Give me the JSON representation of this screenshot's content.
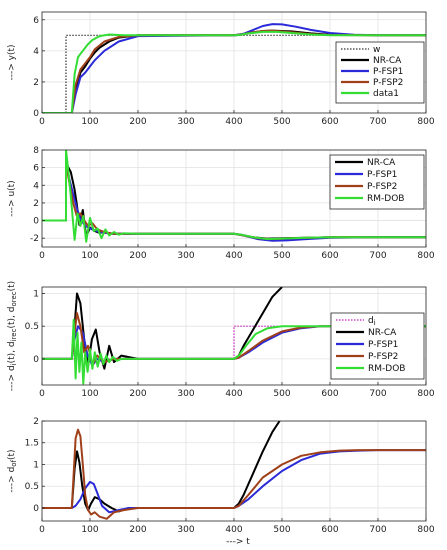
{
  "colors": {
    "w": "#333333",
    "di": "#c020c0",
    "NR-CA": "#000000",
    "P-FSP1": "#2a2ad8",
    "P-FSP2": "#a0401a",
    "green": "#33dd33"
  },
  "xlabel": "---> t",
  "chart_data": [
    {
      "type": "line",
      "ylabel": "---> y(t)",
      "xlim": [
        0,
        800
      ],
      "ylim": [
        0,
        6.5
      ],
      "xticks": [
        0,
        100,
        200,
        300,
        400,
        500,
        600,
        700,
        800
      ],
      "yticks": [
        0,
        2,
        4,
        6
      ],
      "grid": true,
      "legend": "top-right",
      "series": [
        {
          "name": "w",
          "color_key": "w",
          "style": "dotted",
          "x": [
            0,
            50,
            50,
            800
          ],
          "y": [
            0,
            0,
            5,
            5
          ]
        },
        {
          "name": "NR-CA",
          "color_key": "NR-CA",
          "x": [
            0,
            62,
            70,
            80,
            90,
            100,
            110,
            120,
            140,
            160,
            200,
            400,
            410,
            430,
            460,
            480,
            520,
            560,
            600,
            700,
            800
          ],
          "y": [
            0,
            0,
            1.5,
            2.6,
            3.0,
            3.5,
            3.9,
            4.2,
            4.6,
            4.85,
            5,
            5,
            5.02,
            5.15,
            5.28,
            5.3,
            5.25,
            5.12,
            5.04,
            5,
            5
          ]
        },
        {
          "name": "P-FSP1",
          "color_key": "P-FSP1",
          "x": [
            0,
            62,
            70,
            80,
            90,
            100,
            110,
            130,
            160,
            200,
            400,
            420,
            440,
            460,
            480,
            500,
            530,
            560,
            600,
            650,
            700,
            800
          ],
          "y": [
            0,
            0,
            1.2,
            2.3,
            2.6,
            3.0,
            3.4,
            4.0,
            4.6,
            4.95,
            5,
            5.1,
            5.35,
            5.6,
            5.72,
            5.7,
            5.55,
            5.35,
            5.15,
            5.04,
            5,
            5
          ]
        },
        {
          "name": "P-FSP2",
          "color_key": "P-FSP2",
          "x": [
            0,
            62,
            70,
            80,
            90,
            100,
            110,
            130,
            160,
            200,
            400,
            420,
            440,
            460,
            480,
            520,
            560,
            600,
            700,
            800
          ],
          "y": [
            0,
            0,
            1.8,
            2.8,
            3.2,
            3.6,
            4.1,
            4.6,
            4.9,
            5,
            5,
            5.08,
            5.2,
            5.28,
            5.3,
            5.2,
            5.08,
            5.02,
            5,
            5
          ]
        },
        {
          "name": "data1",
          "color_key": "green",
          "x": [
            0,
            62,
            68,
            75,
            85,
            95,
            105,
            120,
            140,
            170,
            200,
            400,
            410,
            430,
            460,
            490,
            520,
            560,
            600,
            700,
            800
          ],
          "y": [
            0,
            0,
            2.5,
            3.6,
            4.0,
            4.4,
            4.7,
            4.95,
            5.05,
            5,
            5,
            5,
            5.02,
            5.12,
            5.22,
            5.22,
            5.15,
            5.05,
            5.01,
            5,
            5
          ]
        }
      ]
    },
    {
      "type": "line",
      "ylabel": "---> u(t)",
      "xlim": [
        0,
        800
      ],
      "ylim": [
        -3,
        8
      ],
      "xticks": [
        0,
        100,
        200,
        300,
        400,
        500,
        600,
        700,
        800
      ],
      "yticks": [
        -2,
        0,
        2,
        4,
        6,
        8
      ],
      "grid": true,
      "legend": "top-right",
      "series": [
        {
          "name": "NR-CA",
          "color_key": "NR-CA",
          "x": [
            0,
            50,
            50,
            60,
            68,
            72,
            78,
            85,
            92,
            100,
            110,
            120,
            130,
            140,
            160,
            200,
            400,
            415,
            440,
            470,
            500,
            550,
            600,
            700,
            800
          ],
          "y": [
            0,
            0,
            6.5,
            5.5,
            3.5,
            2.0,
            -0.5,
            1.2,
            -1.8,
            -0.8,
            -1.2,
            -1.4,
            -1.3,
            -1.5,
            -1.5,
            -1.5,
            -1.5,
            -1.6,
            -1.9,
            -2.05,
            -2.0,
            -1.95,
            -1.9,
            -1.9,
            -1.9
          ]
        },
        {
          "name": "P-FSP1",
          "color_key": "P-FSP1",
          "x": [
            0,
            50,
            50,
            58,
            65,
            72,
            80,
            90,
            100,
            115,
            130,
            150,
            200,
            400,
            420,
            450,
            480,
            510,
            550,
            600,
            700,
            800
          ],
          "y": [
            0,
            0,
            6.5,
            4.5,
            3.0,
            1.5,
            0.2,
            -0.6,
            -0.9,
            -1.2,
            -1.4,
            -1.5,
            -1.5,
            -1.5,
            -1.7,
            -2.1,
            -2.3,
            -2.25,
            -2.1,
            -1.95,
            -1.9,
            -1.9
          ]
        },
        {
          "name": "P-FSP2",
          "color_key": "P-FSP2",
          "x": [
            0,
            50,
            50,
            58,
            65,
            72,
            80,
            88,
            96,
            105,
            115,
            130,
            150,
            200,
            400,
            420,
            450,
            480,
            520,
            560,
            600,
            700,
            800
          ],
          "y": [
            0,
            0,
            6.5,
            4.0,
            2.0,
            0.6,
            0.8,
            0.0,
            -0.6,
            -0.3,
            -1.0,
            -1.3,
            -1.5,
            -1.5,
            -1.5,
            -1.7,
            -2.0,
            -2.1,
            -2.0,
            -1.95,
            -1.9,
            -1.9,
            -1.9
          ]
        },
        {
          "name": "RM-DOB",
          "color_key": "green",
          "x": [
            0,
            50,
            50,
            56,
            62,
            68,
            74,
            80,
            86,
            92,
            100,
            108,
            116,
            124,
            132,
            140,
            150,
            160,
            170,
            200,
            400,
            415,
            440,
            470,
            500,
            550,
            600,
            700,
            800
          ],
          "y": [
            0,
            0,
            8.0,
            5.0,
            1.5,
            -2.2,
            0.8,
            -0.6,
            0.5,
            -2.4,
            0.3,
            -1.2,
            -0.9,
            -2.0,
            -1.0,
            -1.7,
            -1.3,
            -1.6,
            -1.45,
            -1.5,
            -1.5,
            -1.6,
            -1.9,
            -2.1,
            -2.05,
            -1.95,
            -1.9,
            -1.9,
            -1.9
          ]
        }
      ]
    },
    {
      "type": "line",
      "ylabel": "---> d",
      "ylabel_rest": "(t), d",
      "ylabel_sub1": "i",
      "ylabel_sub2": "irec",
      "ylabel_sub3": "orec",
      "ylabel_mid": "(t), d",
      "ylabel_end": "(t)",
      "xlim": [
        0,
        800
      ],
      "ylim": [
        -0.4,
        1.1
      ],
      "xticks": [
        0,
        100,
        200,
        300,
        400,
        500,
        600,
        700,
        800
      ],
      "yticks": [
        0,
        0.5,
        1
      ],
      "ytick_labels": [
        "0",
        "0.5",
        "1"
      ],
      "grid": true,
      "legend": "right",
      "series": [
        {
          "name": "d",
          "name_sub": "i",
          "color_key": "di",
          "style": "dotted",
          "x": [
            0,
            400,
            400,
            800
          ],
          "y": [
            0,
            0,
            0.5,
            0.5
          ]
        },
        {
          "name": "NR-CA",
          "color_key": "NR-CA",
          "x": [
            0,
            62,
            68,
            73,
            80,
            88,
            96,
            104,
            112,
            120,
            130,
            140,
            150,
            165,
            200,
            400,
            410,
            420,
            440,
            460,
            480,
            500
          ],
          "y": [
            0,
            0,
            0.5,
            1.0,
            0.85,
            0.3,
            -0.1,
            0.3,
            0.45,
            0.1,
            -0.15,
            0.2,
            -0.05,
            0.05,
            0,
            0,
            0.05,
            0.2,
            0.45,
            0.7,
            0.95,
            1.1
          ]
        },
        {
          "name": "P-FSP1",
          "color_key": "P-FSP1",
          "x": [
            0,
            62,
            68,
            75,
            85,
            95,
            105,
            115,
            130,
            150,
            200,
            400,
            410,
            430,
            460,
            500,
            540,
            580,
            620,
            700,
            800
          ],
          "y": [
            0,
            0,
            0.3,
            0.5,
            0.4,
            0.05,
            -0.1,
            0.0,
            -0.05,
            0,
            0,
            0,
            0.02,
            0.1,
            0.25,
            0.4,
            0.47,
            0.5,
            0.5,
            0.5,
            0.5
          ]
        },
        {
          "name": "P-FSP2",
          "color_key": "P-FSP2",
          "x": [
            0,
            62,
            68,
            73,
            80,
            88,
            96,
            105,
            115,
            130,
            150,
            200,
            400,
            410,
            430,
            460,
            500,
            540,
            580,
            620,
            700,
            800
          ],
          "y": [
            0,
            0,
            0.4,
            0.7,
            0.5,
            0.1,
            0.2,
            -0.1,
            0.05,
            -0.05,
            0,
            0,
            0,
            0.02,
            0.12,
            0.28,
            0.42,
            0.48,
            0.5,
            0.5,
            0.5,
            0.5
          ]
        },
        {
          "name": "RM-DOB",
          "color_key": "green",
          "x": [
            0,
            62,
            66,
            70,
            74,
            78,
            82,
            86,
            90,
            95,
            100,
            105,
            110,
            116,
            122,
            128,
            134,
            140,
            148,
            156,
            165,
            200,
            400,
            410,
            425,
            445,
            470,
            500,
            540,
            580,
            620,
            700,
            800
          ],
          "y": [
            0,
            0,
            0.6,
            -0.3,
            0.4,
            -0.2,
            0.25,
            -0.38,
            0.1,
            -0.2,
            0.15,
            -0.15,
            0.1,
            -0.12,
            0.08,
            -0.08,
            0.05,
            -0.05,
            0.03,
            -0.03,
            0,
            0,
            0,
            0.05,
            0.2,
            0.38,
            0.47,
            0.5,
            0.5,
            0.5,
            0.5,
            0.5,
            0.5
          ]
        }
      ]
    },
    {
      "type": "line",
      "ylabel": "---> d",
      "ylabel_sub1": "of",
      "ylabel_end": "(t)",
      "xlim": [
        0,
        800
      ],
      "ylim": [
        -0.3,
        2
      ],
      "xticks": [
        0,
        100,
        200,
        300,
        400,
        500,
        600,
        700,
        800
      ],
      "yticks": [
        0,
        0.5,
        1,
        1.5,
        2
      ],
      "ytick_labels": [
        "0",
        "0.5",
        "1",
        "1.5",
        "2"
      ],
      "grid": true,
      "legend": "right",
      "series": [
        {
          "name": "NR-CA",
          "color_key": "NR-CA",
          "x": [
            0,
            62,
            68,
            73,
            78,
            84,
            90,
            96,
            102,
            110,
            120,
            130,
            145,
            160,
            180,
            200,
            400,
            410,
            420,
            440,
            460,
            480,
            495
          ],
          "y": [
            0,
            0,
            0.9,
            1.3,
            1.05,
            0.5,
            0.1,
            -0.05,
            0.1,
            0.25,
            0.2,
            0.1,
            0.0,
            -0.08,
            0.0,
            0,
            0,
            0.1,
            0.3,
            0.8,
            1.3,
            1.75,
            2.0
          ]
        },
        {
          "name": "P-FSP1",
          "color_key": "P-FSP1",
          "x": [
            0,
            62,
            70,
            80,
            90,
            100,
            108,
            115,
            125,
            140,
            160,
            180,
            200,
            400,
            410,
            430,
            460,
            500,
            540,
            580,
            620,
            660,
            700,
            800
          ],
          "y": [
            0,
            0,
            0.05,
            0.2,
            0.45,
            0.6,
            0.55,
            0.35,
            0.05,
            -0.1,
            -0.05,
            0,
            0,
            0,
            0.05,
            0.2,
            0.5,
            0.85,
            1.1,
            1.25,
            1.3,
            1.32,
            1.33,
            1.33
          ]
        },
        {
          "name": "P-FSP2",
          "color_key": "P-FSP2",
          "x": [
            0,
            62,
            66,
            70,
            75,
            80,
            85,
            90,
            96,
            102,
            110,
            120,
            135,
            150,
            170,
            200,
            400,
            410,
            430,
            460,
            500,
            540,
            580,
            620,
            660,
            700,
            800
          ],
          "y": [
            0,
            0,
            0.8,
            1.6,
            1.8,
            1.65,
            1.0,
            0.3,
            -0.05,
            -0.15,
            -0.1,
            -0.2,
            -0.25,
            -0.1,
            -0.05,
            0,
            0,
            0.05,
            0.3,
            0.7,
            1.0,
            1.2,
            1.28,
            1.32,
            1.33,
            1.33,
            1.33
          ]
        }
      ]
    }
  ]
}
